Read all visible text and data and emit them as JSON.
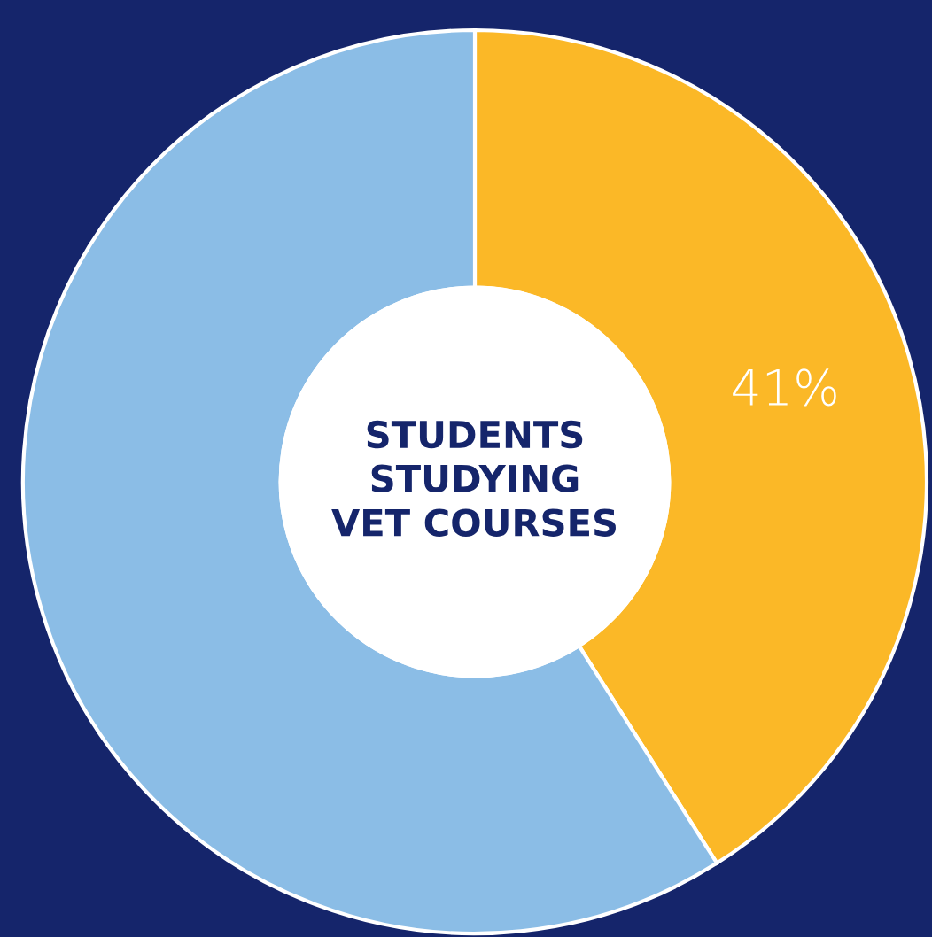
{
  "chart_data": {
    "type": "donut",
    "title": "STUDENTS\nSTUDYING\nVET COURSES",
    "categories": [
      null,
      null
    ],
    "values": [
      41,
      59
    ],
    "colors": [
      "#fbb827",
      "#8bbde6"
    ],
    "value_labels": [
      "41%",
      null
    ]
  }
}
